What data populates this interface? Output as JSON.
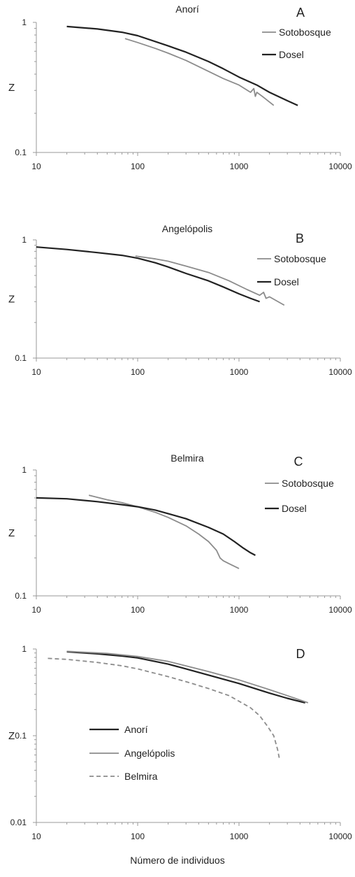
{
  "figure": {
    "xlabel": "Número de individuos"
  },
  "chart_data": [
    {
      "panel_letter": "A",
      "type": "line",
      "title": "Anorí",
      "xlabel": "",
      "ylabel": "Z",
      "xscale": "log",
      "yscale": "log",
      "xlim": [
        10,
        10000
      ],
      "ylim": [
        0.1,
        1
      ],
      "xticks": [
        "10",
        "100",
        "1000",
        "10000"
      ],
      "yticks": [
        "0.1",
        "1"
      ],
      "legend_position": "top-right",
      "series": [
        {
          "name": "Sotobosque",
          "color": "#8c8c8c",
          "x": [
            75,
            100,
            150,
            200,
            300,
            500,
            700,
            1000,
            1300,
            1400,
            1450,
            1500,
            1700,
            2200
          ],
          "y": [
            0.75,
            0.7,
            0.63,
            0.58,
            0.51,
            0.42,
            0.37,
            0.33,
            0.29,
            0.31,
            0.27,
            0.29,
            0.27,
            0.23
          ]
        },
        {
          "name": "Dosel",
          "color": "#222222",
          "x": [
            20,
            40,
            70,
            100,
            200,
            300,
            500,
            700,
            1000,
            1500,
            2000,
            3000,
            3800
          ],
          "y": [
            0.93,
            0.89,
            0.84,
            0.79,
            0.66,
            0.59,
            0.5,
            0.44,
            0.38,
            0.33,
            0.29,
            0.25,
            0.23
          ]
        }
      ]
    },
    {
      "panel_letter": "B",
      "type": "line",
      "title": "Angelópolis",
      "xlabel": "",
      "ylabel": "Z",
      "xscale": "log",
      "yscale": "log",
      "xlim": [
        10,
        10000
      ],
      "ylim": [
        0.1,
        1
      ],
      "xticks": [
        "10",
        "100",
        "1000",
        "10000"
      ],
      "yticks": [
        "0.1",
        "1"
      ],
      "legend_position": "top-right",
      "series": [
        {
          "name": "Sotobosque",
          "color": "#8c8c8c",
          "x": [
            95,
            150,
            200,
            300,
            500,
            800,
            1200,
            1600,
            1750,
            1850,
            2000,
            2800
          ],
          "y": [
            0.73,
            0.69,
            0.66,
            0.6,
            0.53,
            0.45,
            0.38,
            0.34,
            0.36,
            0.32,
            0.33,
            0.28
          ]
        },
        {
          "name": "Dosel",
          "color": "#222222",
          "x": [
            10,
            20,
            40,
            70,
            100,
            150,
            200,
            300,
            500,
            700,
            1000,
            1300,
            1600
          ],
          "y": [
            0.87,
            0.83,
            0.78,
            0.74,
            0.7,
            0.64,
            0.59,
            0.52,
            0.45,
            0.4,
            0.35,
            0.32,
            0.3
          ]
        }
      ]
    },
    {
      "panel_letter": "C",
      "type": "line",
      "title": "Belmira",
      "xlabel": "",
      "ylabel": "Z",
      "xscale": "log",
      "yscale": "log",
      "xlim": [
        10,
        10000
      ],
      "ylim": [
        0.1,
        1
      ],
      "xticks": [
        "10",
        "100",
        "1000",
        "10000"
      ],
      "yticks": [
        "0.1",
        "1"
      ],
      "legend_position": "top-right",
      "series": [
        {
          "name": "Sotobosque",
          "color": "#8c8c8c",
          "x": [
            33,
            50,
            70,
            100,
            150,
            200,
            300,
            400,
            500,
            600,
            650,
            700,
            800,
            1000
          ],
          "y": [
            0.63,
            0.58,
            0.55,
            0.51,
            0.46,
            0.42,
            0.36,
            0.31,
            0.27,
            0.23,
            0.2,
            0.19,
            0.18,
            0.165
          ]
        },
        {
          "name": "Dosel",
          "color": "#222222",
          "x": [
            10,
            20,
            40,
            70,
            100,
            150,
            200,
            300,
            500,
            700,
            900,
            1100,
            1300,
            1450
          ],
          "y": [
            0.6,
            0.59,
            0.56,
            0.53,
            0.51,
            0.48,
            0.45,
            0.41,
            0.35,
            0.31,
            0.27,
            0.24,
            0.22,
            0.21
          ]
        }
      ]
    },
    {
      "panel_letter": "D",
      "type": "line",
      "title": "",
      "xlabel": "",
      "ylabel": "Z",
      "xscale": "log",
      "yscale": "log",
      "xlim": [
        10,
        10000
      ],
      "ylim": [
        0.01,
        1
      ],
      "xticks": [
        "10",
        "100",
        "1000",
        "10000"
      ],
      "yticks": [
        "0.01",
        "0.1",
        "1"
      ],
      "legend_position": "bottom-left",
      "series": [
        {
          "name": "Anorí",
          "color": "#222222",
          "dash": "",
          "x": [
            20,
            40,
            70,
            100,
            200,
            300,
            500,
            1000,
            2000,
            3000,
            4500
          ],
          "y": [
            0.93,
            0.88,
            0.83,
            0.79,
            0.67,
            0.59,
            0.5,
            0.4,
            0.31,
            0.27,
            0.24
          ]
        },
        {
          "name": "Angelópolis",
          "color": "#8c8c8c",
          "dash": "",
          "x": [
            20,
            50,
            100,
            200,
            500,
            1000,
            2000,
            3000,
            4800
          ],
          "y": [
            0.94,
            0.89,
            0.82,
            0.72,
            0.55,
            0.44,
            0.34,
            0.29,
            0.24
          ]
        },
        {
          "name": "Belmira",
          "color": "#8c8c8c",
          "dash": "6,4",
          "x": [
            13,
            20,
            40,
            70,
            100,
            200,
            300,
            500,
            800,
            1000,
            1300,
            1600,
            1900,
            2200,
            2400,
            2500
          ],
          "y": [
            0.78,
            0.76,
            0.7,
            0.64,
            0.59,
            0.48,
            0.42,
            0.35,
            0.29,
            0.25,
            0.21,
            0.17,
            0.13,
            0.1,
            0.07,
            0.055
          ]
        }
      ]
    }
  ]
}
